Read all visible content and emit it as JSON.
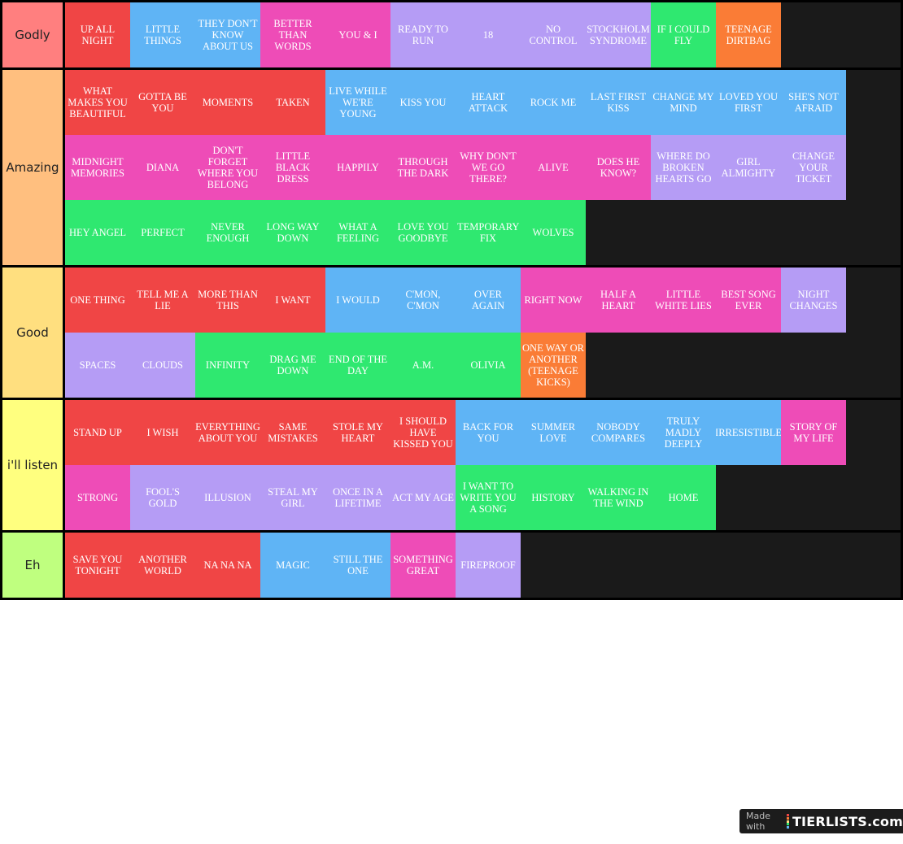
{
  "colors": {
    "red": "#f04545",
    "blue": "#5fb4f5",
    "pink": "#ee4cb7",
    "purple": "#b59cf5",
    "green": "#2fe870",
    "orange": "#fa7c36"
  },
  "tiers": [
    {
      "label": "Godly",
      "color": "#ff7f7f",
      "items": [
        {
          "title": "UP ALL NIGHT",
          "color": "red"
        },
        {
          "title": "LITTLE THINGS",
          "color": "blue"
        },
        {
          "title": "THEY DON'T KNOW ABOUT US",
          "color": "blue"
        },
        {
          "title": "BETTER THAN WORDS",
          "color": "pink"
        },
        {
          "title": "YOU & I",
          "color": "pink"
        },
        {
          "title": "READY TO RUN",
          "color": "purple"
        },
        {
          "title": "18",
          "color": "purple"
        },
        {
          "title": "NO CONTROL",
          "color": "purple"
        },
        {
          "title": "STOCKHOLM SYNDROME",
          "color": "purple"
        },
        {
          "title": "IF I COULD FLY",
          "color": "green"
        },
        {
          "title": "TEENAGE DIRTBAG",
          "color": "orange"
        }
      ]
    },
    {
      "label": "Amazing",
      "color": "#ffbf7f",
      "items": [
        {
          "title": "WHAT MAKES YOU BEAUTIFUL",
          "color": "red"
        },
        {
          "title": "GOTTA BE YOU",
          "color": "red"
        },
        {
          "title": "MOMENTS",
          "color": "red"
        },
        {
          "title": "TAKEN",
          "color": "red"
        },
        {
          "title": "LIVE WHILE WE'RE YOUNG",
          "color": "blue"
        },
        {
          "title": "KISS YOU",
          "color": "blue"
        },
        {
          "title": "HEART ATTACK",
          "color": "blue"
        },
        {
          "title": "ROCK ME",
          "color": "blue"
        },
        {
          "title": "LAST FIRST KISS",
          "color": "blue"
        },
        {
          "title": "CHANGE MY MIND",
          "color": "blue"
        },
        {
          "title": "LOVED YOU FIRST",
          "color": "blue"
        },
        {
          "title": "SHE'S NOT AFRAID",
          "color": "blue"
        },
        {
          "title": "MIDNIGHT MEMORIES",
          "color": "pink"
        },
        {
          "title": "DIANA",
          "color": "pink"
        },
        {
          "title": "DON'T FORGET WHERE YOU BELONG",
          "color": "pink"
        },
        {
          "title": "LITTLE BLACK DRESS",
          "color": "pink"
        },
        {
          "title": "HAPPILY",
          "color": "pink"
        },
        {
          "title": "THROUGH THE DARK",
          "color": "pink"
        },
        {
          "title": "WHY DON'T WE GO THERE?",
          "color": "pink"
        },
        {
          "title": "ALIVE",
          "color": "pink"
        },
        {
          "title": "DOES HE KNOW?",
          "color": "pink"
        },
        {
          "title": "WHERE DO BROKEN HEARTS GO",
          "color": "purple"
        },
        {
          "title": "GIRL ALMIGHTY",
          "color": "purple"
        },
        {
          "title": "CHANGE YOUR TICKET",
          "color": "purple"
        },
        {
          "title": "HEY ANGEL",
          "color": "green"
        },
        {
          "title": "PERFECT",
          "color": "green"
        },
        {
          "title": "NEVER ENOUGH",
          "color": "green"
        },
        {
          "title": "LONG WAY DOWN",
          "color": "green"
        },
        {
          "title": "WHAT A FEELING",
          "color": "green"
        },
        {
          "title": "LOVE YOU GOODBYE",
          "color": "green"
        },
        {
          "title": "TEMPORARY FIX",
          "color": "green"
        },
        {
          "title": "WOLVES",
          "color": "green"
        }
      ]
    },
    {
      "label": "Good",
      "color": "#ffdf7f",
      "items": [
        {
          "title": "ONE THING",
          "color": "red"
        },
        {
          "title": "TELL ME A LIE",
          "color": "red"
        },
        {
          "title": "MORE THAN THIS",
          "color": "red"
        },
        {
          "title": "I WANT",
          "color": "red"
        },
        {
          "title": "I WOULD",
          "color": "blue"
        },
        {
          "title": "C'MON, C'MON",
          "color": "blue"
        },
        {
          "title": "OVER AGAIN",
          "color": "blue"
        },
        {
          "title": "RIGHT NOW",
          "color": "pink"
        },
        {
          "title": "HALF A HEART",
          "color": "pink"
        },
        {
          "title": "LITTLE WHITE LIES",
          "color": "pink"
        },
        {
          "title": "BEST SONG EVER",
          "color": "pink"
        },
        {
          "title": "NIGHT CHANGES",
          "color": "purple"
        },
        {
          "title": "SPACES",
          "color": "purple"
        },
        {
          "title": "CLOUDS",
          "color": "purple"
        },
        {
          "title": "INFINITY",
          "color": "green"
        },
        {
          "title": "DRAG ME DOWN",
          "color": "green"
        },
        {
          "title": "END OF THE DAY",
          "color": "green"
        },
        {
          "title": "A.M.",
          "color": "green"
        },
        {
          "title": "OLIVIA",
          "color": "green"
        },
        {
          "title": "ONE WAY OR ANOTHER (TEENAGE KICKS)",
          "color": "orange"
        }
      ]
    },
    {
      "label": "i'll listen",
      "color": "#ffff7f",
      "items": [
        {
          "title": "STAND UP",
          "color": "red"
        },
        {
          "title": "I WISH",
          "color": "red"
        },
        {
          "title": "EVERYTHING ABOUT YOU",
          "color": "red"
        },
        {
          "title": "SAME MISTAKES",
          "color": "red"
        },
        {
          "title": "STOLE MY HEART",
          "color": "red"
        },
        {
          "title": "I SHOULD HAVE KISSED YOU",
          "color": "red"
        },
        {
          "title": "BACK FOR YOU",
          "color": "blue"
        },
        {
          "title": "SUMMER LOVE",
          "color": "blue"
        },
        {
          "title": "NOBODY COMPARES",
          "color": "blue"
        },
        {
          "title": "TRULY MADLY DEEPLY",
          "color": "blue"
        },
        {
          "title": "IRRESISTIBLE",
          "color": "blue"
        },
        {
          "title": "STORY OF MY LIFE",
          "color": "pink"
        },
        {
          "title": "STRONG",
          "color": "pink"
        },
        {
          "title": "FOOL'S GOLD",
          "color": "purple"
        },
        {
          "title": "ILLUSION",
          "color": "purple"
        },
        {
          "title": "STEAL MY GIRL",
          "color": "purple"
        },
        {
          "title": "ONCE IN A LIFETIME",
          "color": "purple"
        },
        {
          "title": "ACT MY AGE",
          "color": "purple"
        },
        {
          "title": "I WANT TO WRITE YOU A SONG",
          "color": "green"
        },
        {
          "title": "HISTORY",
          "color": "green"
        },
        {
          "title": "WALKING IN THE WIND",
          "color": "green"
        },
        {
          "title": "HOME",
          "color": "green"
        }
      ]
    },
    {
      "label": "Eh",
      "color": "#bfff7f",
      "items": [
        {
          "title": "SAVE YOU TONIGHT",
          "color": "red"
        },
        {
          "title": "ANOTHER WORLD",
          "color": "red"
        },
        {
          "title": "NA NA NA",
          "color": "red"
        },
        {
          "title": "MAGIC",
          "color": "blue"
        },
        {
          "title": "STILL THE ONE",
          "color": "blue"
        },
        {
          "title": "SOMETHING GREAT",
          "color": "pink"
        },
        {
          "title": "FIREPROOF",
          "color": "purple"
        }
      ]
    }
  ],
  "watermark": {
    "made_with": "Made with",
    "brand": "TIERLISTS.com",
    "bar_colors": [
      "#f04545",
      "#fa7c36",
      "#ffdf7f",
      "#2fe870",
      "#5fb4f5"
    ]
  }
}
